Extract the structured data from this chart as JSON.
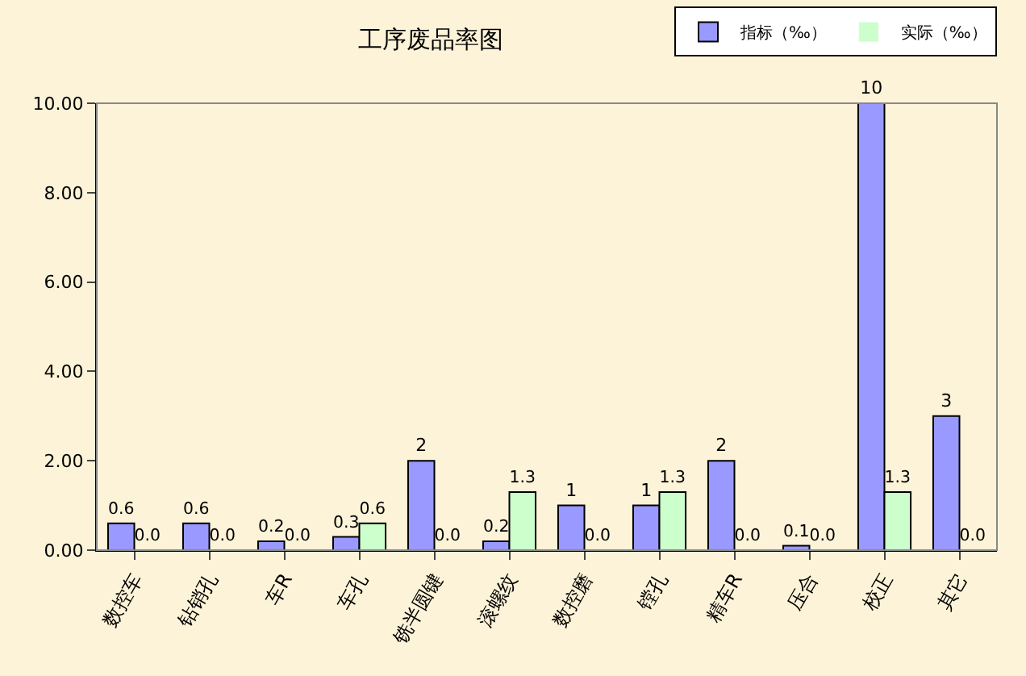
{
  "chart_data": {
    "type": "bar",
    "title": "工序废品率图",
    "categories": [
      "数控车",
      "钻销孔",
      "车R",
      "车孔",
      "铣半圆键",
      "滚螺纹",
      "数控磨",
      "镗孔",
      "精车R",
      "压合",
      "校正",
      "其它"
    ],
    "series": [
      {
        "name": "指标（‰）",
        "color": "#9999ff",
        "values": [
          0.6,
          0.6,
          0.2,
          0.3,
          2,
          0.2,
          1,
          1,
          2,
          0.1,
          10,
          3
        ],
        "value_labels": [
          "0.6",
          "0.6",
          "0.2",
          "0.3",
          "2",
          "0.2",
          "1",
          "1",
          "2",
          "0.1",
          "10",
          "3"
        ]
      },
      {
        "name": "实际（‰）",
        "color": "#ccffcc",
        "values": [
          0,
          0,
          0,
          0.6,
          0,
          1.3,
          0,
          1.3,
          0,
          0,
          1.3,
          0
        ],
        "value_labels": [
          "0.0",
          "0.0",
          "0.0",
          "0.6",
          "0.0",
          "1.3",
          "0.0",
          "1.3",
          "0.0",
          "0.0",
          "1.3",
          "0.0"
        ]
      }
    ],
    "ylim": [
      0,
      10
    ],
    "yticks": [
      {
        "value": 0,
        "label": "0.00"
      },
      {
        "value": 2,
        "label": "2.00"
      },
      {
        "value": 4,
        "label": "4.00"
      },
      {
        "value": 6,
        "label": "6.00"
      },
      {
        "value": 8,
        "label": "8.00"
      },
      {
        "value": 10,
        "label": "10.00"
      }
    ],
    "grid": false,
    "legend": "top right"
  }
}
